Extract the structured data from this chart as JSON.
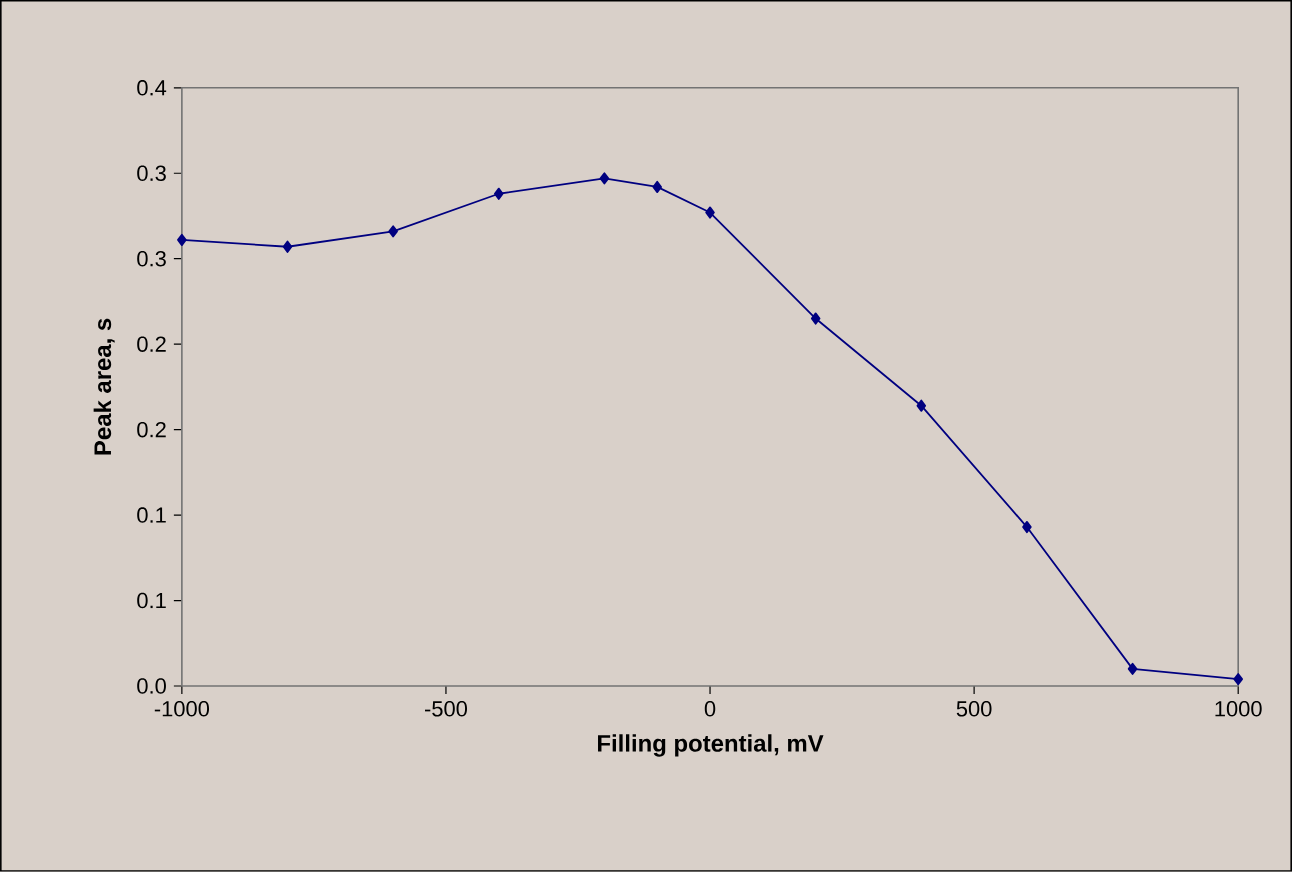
{
  "chart_data": {
    "type": "line",
    "xlabel": "Filling potential, mV",
    "ylabel": "Peak area, s",
    "x": [
      -1000,
      -800,
      -600,
      -400,
      -200,
      -100,
      0,
      200,
      400,
      600,
      800,
      1000
    ],
    "series": [
      {
        "color": "#000080",
        "values": [
          0.261,
          0.257,
          0.266,
          0.288,
          0.297,
          0.292,
          0.277,
          0.215,
          0.164,
          0.093,
          0.01,
          0.004
        ]
      }
    ],
    "xlim": [
      -1000,
      1000
    ],
    "xticks": [
      -1000,
      -500,
      0,
      500,
      1000
    ],
    "ylim": [
      0,
      0.35
    ],
    "yticks": [
      {
        "value": 0,
        "label": "0.0"
      },
      {
        "value": 0.05,
        "label": "0.1"
      },
      {
        "value": 0.1,
        "label": "0.1"
      },
      {
        "value": 0.15,
        "label": "0.2"
      },
      {
        "value": 0.2,
        "label": "0.2"
      },
      {
        "value": 0.25,
        "label": "0.3"
      },
      {
        "value": 0.3,
        "label": "0.3"
      },
      {
        "value": 0.35,
        "label": "0.4"
      }
    ],
    "marker": "diamond",
    "line_style": "solid"
  }
}
